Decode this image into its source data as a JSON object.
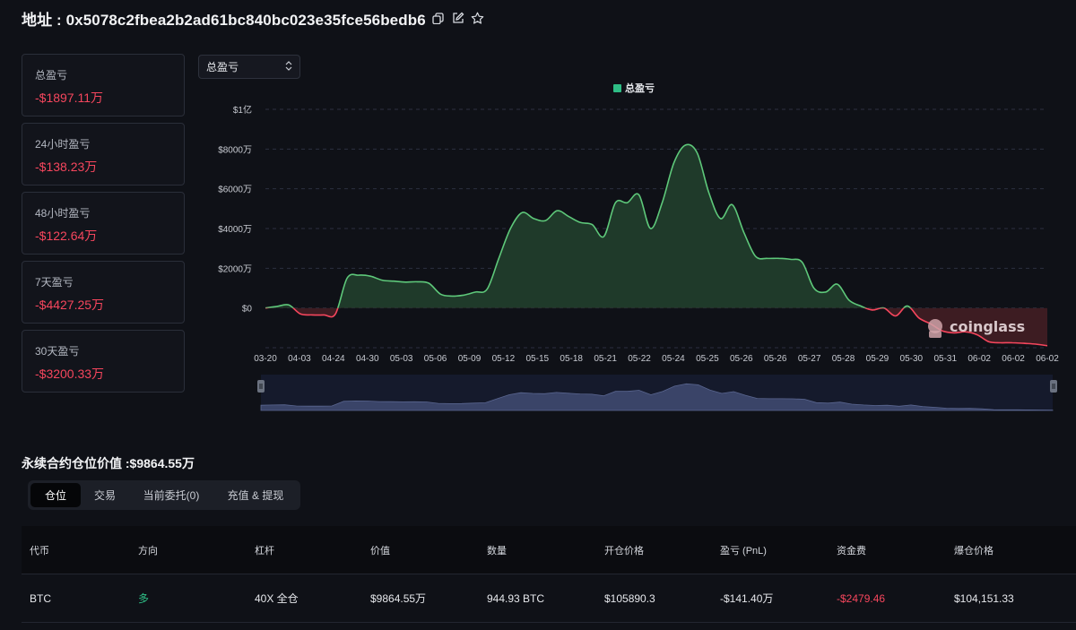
{
  "header": {
    "title": "地址 : 0x5078c2fbea2b2ad61bc840bc023e35fce56bedb6",
    "icons": [
      "copy-icon",
      "edit-icon",
      "star-icon"
    ]
  },
  "stats": [
    {
      "label": "总盈亏",
      "value": "-$1897.11万"
    },
    {
      "label": "24小时盈亏",
      "value": "-$138.23万"
    },
    {
      "label": "48小时盈亏",
      "value": "-$122.64万"
    },
    {
      "label": "7天盈亏",
      "value": "-$4427.25万"
    },
    {
      "label": "30天盈亏",
      "value": "-$3200.33万"
    }
  ],
  "select": {
    "value": "总盈亏"
  },
  "chart_data": {
    "type": "area",
    "legend": "总盈亏",
    "legend_position": "top-center",
    "watermark": "coinglass",
    "y_ticks": [
      "$1亿",
      "$8000万",
      "$6000万",
      "$4000万",
      "$2000万",
      "$0"
    ],
    "y_tick_values": [
      10000,
      8000,
      6000,
      4000,
      2000,
      0
    ],
    "ylim": [
      -2000,
      10000
    ],
    "y_unit": "万",
    "x_tick_labels": [
      "03-20",
      "04-03",
      "04-24",
      "04-30",
      "05-03",
      "05-06",
      "05-09",
      "05-12",
      "05-15",
      "05-18",
      "05-21",
      "05-22",
      "05-24",
      "05-25",
      "05-26",
      "05-26",
      "05-27",
      "05-28",
      "05-29",
      "05-30",
      "05-31",
      "06-02",
      "06-02",
      "06-02"
    ],
    "grid": true,
    "colors": {
      "positive": "#5ec87a",
      "negative": "#f6465d",
      "positive_fill": "#1f3a2a",
      "negative_fill": "#3d1c22"
    },
    "values": [
      0,
      80,
      150,
      -300,
      -350,
      -350,
      -300,
      1500,
      1650,
      1600,
      1400,
      1350,
      1300,
      1320,
      1250,
      700,
      600,
      650,
      800,
      950,
      2500,
      4000,
      4800,
      4500,
      4400,
      4900,
      4600,
      4300,
      4200,
      3600,
      5300,
      5300,
      5700,
      4000,
      5300,
      7300,
      8200,
      7800,
      5800,
      4500,
      5200,
      3800,
      2600,
      2500,
      2500,
      2450,
      2300,
      1000,
      800,
      1200,
      400,
      100,
      -100,
      0,
      -400,
      100,
      -500,
      -800,
      -1150,
      -1250,
      -1200,
      -1350,
      -1700,
      -1750,
      -1750,
      -1780,
      -1820,
      -1900
    ]
  },
  "section_title": "永续合约仓位价值 :$9864.55万",
  "tabs": [
    "仓位",
    "交易",
    "当前委托(0)",
    "充值 & 提现"
  ],
  "table": {
    "headers": [
      "代币",
      "方向",
      "杠杆",
      "价值",
      "数量",
      "开仓价格",
      "盈亏 (PnL)",
      "资金费",
      "爆仓价格"
    ],
    "rows": [
      [
        "BTC",
        "多",
        "40X 全仓",
        "$9864.55万",
        "944.93 BTC",
        "$105890.3",
        "-$141.40万",
        "-$2479.46",
        "$104,151.33"
      ]
    ]
  }
}
